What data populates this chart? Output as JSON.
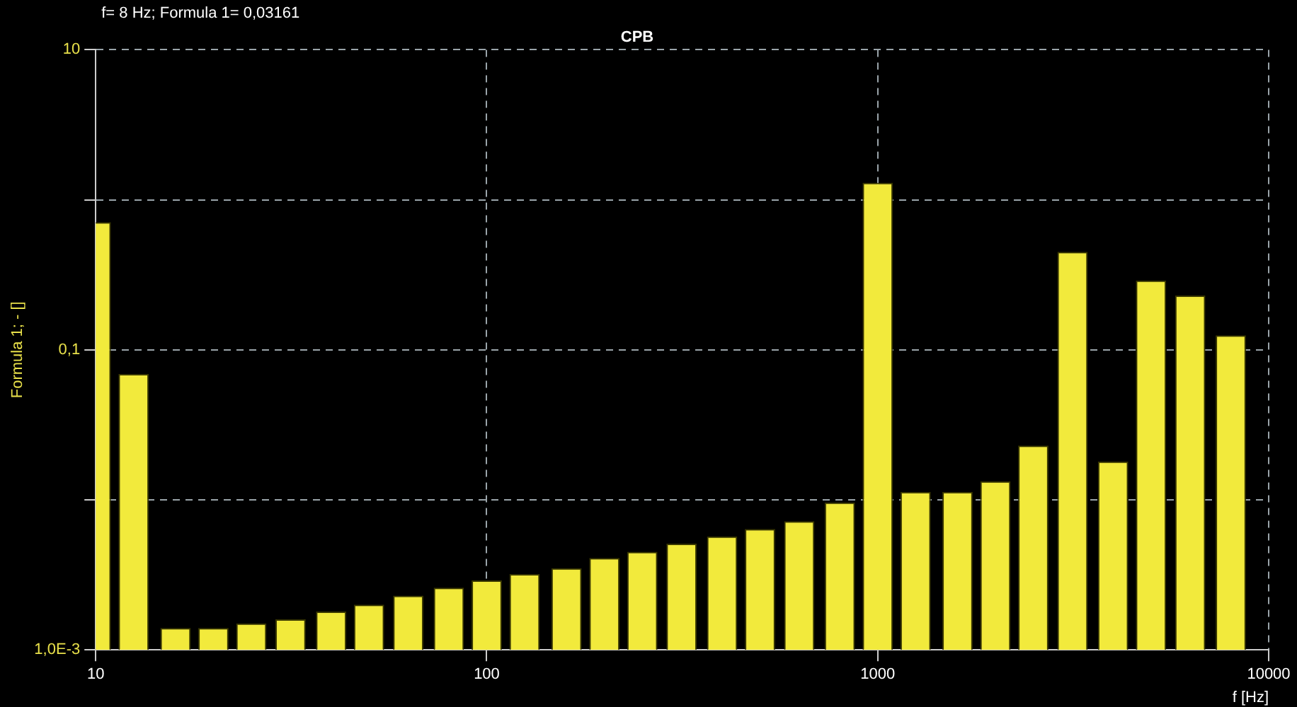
{
  "chart_data": {
    "type": "bar",
    "title": "CPB",
    "xlabel": "f [Hz]",
    "ylabel": "Formula 1; - []",
    "annotations": [
      "f= 8 Hz; Formula 1= 0,03161"
    ],
    "x": [
      10,
      12.5,
      16,
      20,
      25,
      31.5,
      40,
      50,
      63,
      80,
      100,
      125,
      160,
      200,
      250,
      315,
      400,
      500,
      630,
      800,
      1000,
      1250,
      1600,
      2000,
      2500,
      3150,
      4000,
      5000,
      6300,
      8000
    ],
    "values": [
      0.71,
      0.069,
      0.0014,
      0.0014,
      0.0015,
      0.0016,
      0.0018,
      0.002,
      0.0023,
      0.0026,
      0.0029,
      0.0032,
      0.0035,
      0.0041,
      0.0045,
      0.0051,
      0.0057,
      0.0064,
      0.0072,
      0.0096,
      1.3,
      0.0113,
      0.0113,
      0.0133,
      0.023,
      0.45,
      0.018,
      0.29,
      0.23,
      0.125
    ],
    "color": "#f2ea3c",
    "xlim": [
      10,
      10000
    ],
    "xticks": [
      10,
      100,
      1000,
      10000
    ],
    "ylim": [
      0.001,
      10
    ],
    "yticks": [
      {
        "value": 0.001,
        "label": "1,0E-3"
      },
      {
        "value": 0.01,
        "label": null
      },
      {
        "value": 0.1,
        "label": "0,1"
      },
      {
        "value": 1,
        "label": null
      },
      {
        "value": 10,
        "label": "10"
      }
    ],
    "log": "xy",
    "grid": true
  }
}
